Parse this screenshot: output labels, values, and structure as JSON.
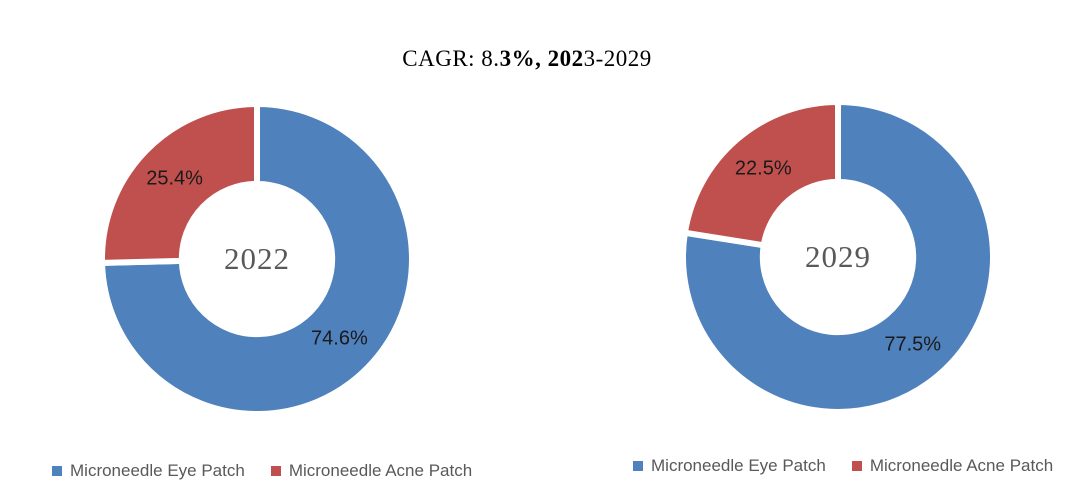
{
  "title": {
    "full": "CAGR: 8.3%, 2023-2029",
    "prefix": "CAGR: 8.",
    "bold": "3%, 202",
    "suffix": "3-2029"
  },
  "colors": {
    "eye_patch_blue": "#4F81BD",
    "acne_patch_red": "#C0504D",
    "center_label_gray": "#595959",
    "legend_text_gray": "#595959",
    "data_label_black": "#1a1a1a"
  },
  "chart_data": [
    {
      "type": "pie",
      "subtype": "donut",
      "center_label": "2022",
      "categories": [
        "Microneedle Eye Patch",
        "Microneedle Acne Patch"
      ],
      "values": [
        74.6,
        25.4
      ],
      "labels": [
        "74.6%",
        "25.4%"
      ],
      "colors": [
        "#4F81BD",
        "#C0504D"
      ],
      "start_angle_deg": 0,
      "direction": "clockwise",
      "hole_ratio": 0.5,
      "legend_position": "bottom"
    },
    {
      "type": "pie",
      "subtype": "donut",
      "center_label": "2029",
      "categories": [
        "Microneedle Eye Patch",
        "Microneedle Acne Patch"
      ],
      "values": [
        77.5,
        22.5
      ],
      "labels": [
        "77.5%",
        "22.5%"
      ],
      "colors": [
        "#4F81BD",
        "#C0504D"
      ],
      "start_angle_deg": 0,
      "direction": "clockwise",
      "hole_ratio": 0.5,
      "legend_position": "bottom"
    }
  ]
}
